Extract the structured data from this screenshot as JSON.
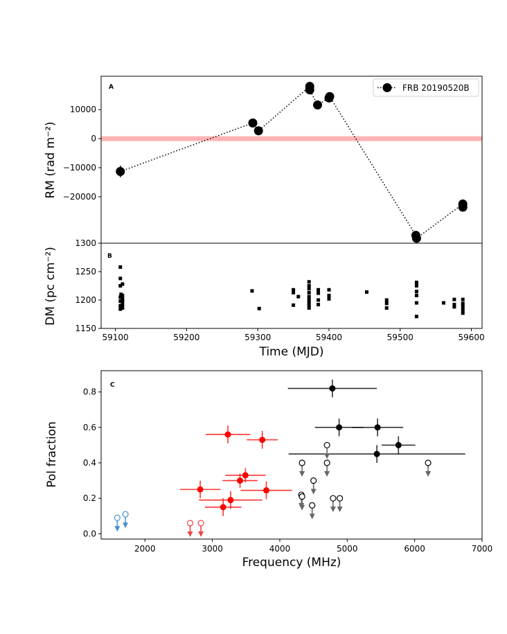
{
  "chart_data": [
    {
      "panel": "A",
      "type": "line",
      "xlabel": "Time (MJD)",
      "ylabel": "RM (rad m$^{-2}$)",
      "xlim": [
        59080,
        59615
      ],
      "ylim": [
        -36000,
        21500
      ],
      "yticks": [
        -20000,
        -10000,
        0,
        10000
      ],
      "ytick_labels": [
        "−20000",
        "−10000",
        "0",
        "10000"
      ],
      "legend": "top-right",
      "reference_band": {
        "y": 0,
        "color": "#ffb3b3"
      },
      "series": [
        {
          "name": "FRB 20190520B",
          "color": "#000000",
          "x": [
            59107,
            59293,
            59301,
            59373,
            59373,
            59384,
            59400,
            59401,
            59522,
            59523,
            59588,
            59588
          ],
          "y": [
            -11300,
            5400,
            2700,
            18000,
            16800,
            11600,
            14000,
            14500,
            -33300,
            -34300,
            -22500,
            -23600
          ],
          "yerr": [
            2000,
            900,
            900,
            1000,
            800,
            900,
            900,
            900,
            900,
            900,
            900,
            900
          ]
        }
      ]
    },
    {
      "panel": "B",
      "type": "scatter",
      "xlabel": "Time (MJD)",
      "ylabel": "DM (pc cm$^{-2}$)",
      "xlim": [
        59080,
        59615
      ],
      "ylim": [
        1150,
        1300
      ],
      "xticks": [
        59100,
        59200,
        59300,
        59400,
        59500,
        59600
      ],
      "yticks": [
        1150,
        1200,
        1250,
        1300
      ],
      "series": [
        {
          "name": "DM",
          "color": "#000000",
          "x": [
            59107,
            59107,
            59107,
            59107,
            59107,
            59107,
            59107,
            59108,
            59110,
            59110,
            59110,
            59110,
            59110,
            59110,
            59292,
            59302,
            59350,
            59350,
            59350,
            59357,
            59372,
            59372,
            59372,
            59372,
            59372,
            59372,
            59372,
            59372,
            59372,
            59385,
            59385,
            59385,
            59385,
            59400,
            59400,
            59400,
            59453,
            59481,
            59481,
            59481,
            59523,
            59523,
            59523,
            59523,
            59523,
            59523,
            59561,
            59576,
            59576,
            59576,
            59588,
            59588,
            59588,
            59588,
            59588
          ],
          "y": [
            1258,
            1238,
            1225,
            1205,
            1198,
            1190,
            1184,
            1210,
            1228,
            1208,
            1202,
            1198,
            1192,
            1186,
            1216,
            1185,
            1218,
            1213,
            1191,
            1206,
            1232,
            1225,
            1220,
            1213,
            1206,
            1200,
            1196,
            1191,
            1186,
            1218,
            1212,
            1200,
            1192,
            1218,
            1208,
            1202,
            1214,
            1200,
            1194,
            1186,
            1231,
            1225,
            1215,
            1208,
            1195,
            1171,
            1195,
            1201,
            1192,
            1188,
            1201,
            1194,
            1189,
            1183,
            1177
          ]
        }
      ]
    },
    {
      "panel": "C",
      "type": "scatter",
      "xlabel": "Frequency (MHz)",
      "ylabel": "Pol fraction",
      "xlim": [
        1350,
        7000
      ],
      "ylim": [
        -0.03,
        0.92
      ],
      "xticks": [
        2000,
        3000,
        4000,
        5000,
        6000,
        7000
      ],
      "yticks": [
        0.0,
        0.2,
        0.4,
        0.6,
        0.8
      ],
      "ytick_labels": [
        "0.0",
        "0.2",
        "0.4",
        "0.6",
        "0.8"
      ],
      "series": [
        {
          "name": "black detections",
          "color": "#000000",
          "points": [
            {
              "x": 4780,
              "y": 0.82,
              "xerr": 660,
              "yerr": 0.05
            },
            {
              "x": 4880,
              "y": 0.6,
              "xerr": 360,
              "yerr": 0.05
            },
            {
              "x": 5450,
              "y": 0.6,
              "xerr": 380,
              "yerr": 0.05
            },
            {
              "x": 5760,
              "y": 0.5,
              "xerr": 250,
              "yerr": 0.05
            },
            {
              "x": 5440,
              "y": 0.45,
              "xerr": 1310,
              "yerr": 0.05
            }
          ]
        },
        {
          "name": "red detections",
          "color": "#ff0000",
          "points": [
            {
              "x": 3230,
              "y": 0.56,
              "xerr": 330,
              "yerr": 0.05
            },
            {
              "x": 3740,
              "y": 0.53,
              "xerr": 230,
              "yerr": 0.05
            },
            {
              "x": 3490,
              "y": 0.33,
              "xerr": 300,
              "yerr": 0.04
            },
            {
              "x": 3410,
              "y": 0.3,
              "xerr": 260,
              "yerr": 0.04
            },
            {
              "x": 2820,
              "y": 0.25,
              "xerr": 300,
              "yerr": 0.05
            },
            {
              "x": 3800,
              "y": 0.245,
              "xerr": 380,
              "yerr": 0.05
            },
            {
              "x": 3270,
              "y": 0.19,
              "xerr": 470,
              "yerr": 0.05
            },
            {
              "x": 3160,
              "y": 0.15,
              "xerr": 270,
              "yerr": 0.05
            }
          ]
        },
        {
          "name": "grey upper limits",
          "color": "#666666",
          "points": [
            {
              "x": 4330,
              "y": 0.4
            },
            {
              "x": 4700,
              "y": 0.5
            },
            {
              "x": 4700,
              "y": 0.4
            },
            {
              "x": 6200,
              "y": 0.4
            },
            {
              "x": 4500,
              "y": 0.3
            },
            {
              "x": 4320,
              "y": 0.22
            },
            {
              "x": 4330,
              "y": 0.21
            },
            {
              "x": 4480,
              "y": 0.16
            },
            {
              "x": 4790,
              "y": 0.2
            },
            {
              "x": 4890,
              "y": 0.2
            }
          ]
        },
        {
          "name": "red upper limits",
          "color": "#ee4444",
          "points": [
            {
              "x": 2670,
              "y": 0.06
            },
            {
              "x": 2830,
              "y": 0.06
            }
          ]
        },
        {
          "name": "blue upper limits",
          "color": "#4a90c8",
          "points": [
            {
              "x": 1590,
              "y": 0.09
            },
            {
              "x": 1710,
              "y": 0.11
            }
          ]
        }
      ]
    }
  ],
  "legend": {
    "label": "FRB 20190520B"
  },
  "panel_letters": {
    "a": "A",
    "b": "B",
    "c": "C"
  },
  "axes": {
    "a_ylabel": "RM (rad m⁻²)",
    "b_ylabel": "DM (pc cm⁻²)",
    "b_xlabel": "Time (MJD)",
    "c_ylabel": "Pol fraction",
    "c_xlabel": "Frequency (MHz)"
  }
}
